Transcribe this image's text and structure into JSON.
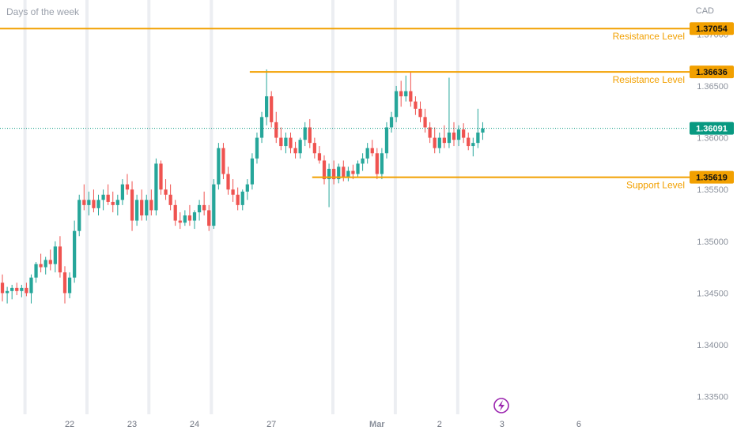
{
  "chart_data": {
    "type": "candlestick",
    "title": "Days of the week",
    "currency": "CAD",
    "ylim": [
      1.3333,
      1.3733
    ],
    "y_ticks": [
      "1.33500",
      "1.34000",
      "1.34500",
      "1.35000",
      "1.35500",
      "1.36000",
      "1.36500",
      "1.37000"
    ],
    "x_ticks": [
      {
        "label": "22",
        "pos": 14
      },
      {
        "label": "23",
        "pos": 27
      },
      {
        "label": "24",
        "pos": 40
      },
      {
        "label": "27",
        "pos": 56
      },
      {
        "label": "Mar",
        "pos": 78,
        "bold": true
      },
      {
        "label": "2",
        "pos": 91
      },
      {
        "label": "3",
        "pos": 104
      },
      {
        "label": "6",
        "pos": 120
      }
    ],
    "x_range": [
      -0.5,
      142.4
    ],
    "session_breaks": [
      4.7,
      17.6,
      30.5,
      43.5,
      68.8,
      81.8,
      94.8
    ],
    "current_price": {
      "value": 1.36091,
      "label": "1.36091"
    },
    "levels": [
      {
        "name": "Resistance Level",
        "value": 1.37054,
        "label": "1.37054",
        "x_start": -0.5
      },
      {
        "name": "Resistance Level",
        "value": 1.36636,
        "label": "1.36636",
        "x_start": 51.5
      },
      {
        "name": "Support Level",
        "value": 1.35619,
        "label": "1.35619",
        "x_start": 64.5
      }
    ],
    "colors": {
      "up": "#26a69a",
      "down": "#ef5350",
      "level": "#f2a000",
      "current": "#089981",
      "grid": "#eceef2",
      "axis_text": "#8b919c"
    },
    "ohlc": [
      [
        1.346,
        1.3468,
        1.3442,
        1.345
      ],
      [
        1.345,
        1.3456,
        1.344,
        1.3452
      ],
      [
        1.3452,
        1.3458,
        1.3444,
        1.3455
      ],
      [
        1.3455,
        1.346,
        1.3448,
        1.3452
      ],
      [
        1.3452,
        1.3458,
        1.3446,
        1.3455
      ],
      [
        1.3455,
        1.346,
        1.3447,
        1.345
      ],
      [
        1.345,
        1.3468,
        1.344,
        1.3465
      ],
      [
        1.3465,
        1.348,
        1.346,
        1.3478
      ],
      [
        1.3478,
        1.3488,
        1.347,
        1.3475
      ],
      [
        1.3475,
        1.3485,
        1.3468,
        1.3482
      ],
      [
        1.3482,
        1.3492,
        1.3472,
        1.3478
      ],
      [
        1.3478,
        1.35,
        1.347,
        1.3495
      ],
      [
        1.3495,
        1.3505,
        1.3465,
        1.347
      ],
      [
        1.347,
        1.3476,
        1.344,
        1.345
      ],
      [
        1.345,
        1.347,
        1.3445,
        1.3465
      ],
      [
        1.3465,
        1.352,
        1.346,
        1.351
      ],
      [
        1.351,
        1.3545,
        1.3505,
        1.354
      ],
      [
        1.354,
        1.3555,
        1.353,
        1.3535
      ],
      [
        1.3535,
        1.3548,
        1.3525,
        1.354
      ],
      [
        1.354,
        1.355,
        1.3528,
        1.3532
      ],
      [
        1.3532,
        1.3545,
        1.3525,
        1.354
      ],
      [
        1.354,
        1.355,
        1.353,
        1.3545
      ],
      [
        1.3545,
        1.3555,
        1.3535,
        1.3538
      ],
      [
        1.3538,
        1.3548,
        1.3528,
        1.3535
      ],
      [
        1.3535,
        1.3545,
        1.3525,
        1.354
      ],
      [
        1.354,
        1.356,
        1.3535,
        1.3555
      ],
      [
        1.3555,
        1.3565,
        1.3545,
        1.355
      ],
      [
        1.355,
        1.3558,
        1.351,
        1.352
      ],
      [
        1.352,
        1.3545,
        1.3515,
        1.354
      ],
      [
        1.354,
        1.355,
        1.352,
        1.3525
      ],
      [
        1.3525,
        1.3545,
        1.352,
        1.354
      ],
      [
        1.354,
        1.355,
        1.3525,
        1.353
      ],
      [
        1.353,
        1.358,
        1.3525,
        1.3575
      ],
      [
        1.3575,
        1.3578,
        1.3545,
        1.355
      ],
      [
        1.355,
        1.356,
        1.354,
        1.3545
      ],
      [
        1.3545,
        1.3555,
        1.353,
        1.3535
      ],
      [
        1.3535,
        1.354,
        1.3515,
        1.352
      ],
      [
        1.352,
        1.3528,
        1.3512,
        1.3518
      ],
      [
        1.3518,
        1.353,
        1.3515,
        1.3525
      ],
      [
        1.3525,
        1.3535,
        1.3515,
        1.352
      ],
      [
        1.352,
        1.353,
        1.3512,
        1.3528
      ],
      [
        1.3528,
        1.354,
        1.352,
        1.3535
      ],
      [
        1.3535,
        1.3548,
        1.3525,
        1.353
      ],
      [
        1.353,
        1.3535,
        1.351,
        1.3515
      ],
      [
        1.3515,
        1.356,
        1.3512,
        1.3555
      ],
      [
        1.3555,
        1.3595,
        1.355,
        1.359
      ],
      [
        1.359,
        1.3595,
        1.356,
        1.3565
      ],
      [
        1.3565,
        1.3572,
        1.3545,
        1.355
      ],
      [
        1.355,
        1.356,
        1.3538,
        1.3545
      ],
      [
        1.3545,
        1.3552,
        1.353,
        1.3535
      ],
      [
        1.3535,
        1.355,
        1.353,
        1.3548
      ],
      [
        1.3548,
        1.356,
        1.354,
        1.3555
      ],
      [
        1.3555,
        1.3585,
        1.355,
        1.358
      ],
      [
        1.358,
        1.3605,
        1.3575,
        1.36
      ],
      [
        1.36,
        1.3625,
        1.3595,
        1.362
      ],
      [
        1.362,
        1.3666,
        1.3612,
        1.364
      ],
      [
        1.364,
        1.3645,
        1.361,
        1.3615
      ],
      [
        1.3615,
        1.3625,
        1.3595,
        1.36
      ],
      [
        1.36,
        1.361,
        1.3588,
        1.3592
      ],
      [
        1.3592,
        1.3605,
        1.3585,
        1.36
      ],
      [
        1.36,
        1.3605,
        1.3585,
        1.359
      ],
      [
        1.359,
        1.3596,
        1.358,
        1.3585
      ],
      [
        1.3585,
        1.36,
        1.358,
        1.3598
      ],
      [
        1.3598,
        1.3615,
        1.3592,
        1.361
      ],
      [
        1.361,
        1.3618,
        1.359,
        1.3595
      ],
      [
        1.3595,
        1.36,
        1.358,
        1.3585
      ],
      [
        1.3585,
        1.3592,
        1.3575,
        1.3578
      ],
      [
        1.3578,
        1.3583,
        1.3555,
        1.356
      ],
      [
        1.356,
        1.3575,
        1.3533,
        1.357
      ],
      [
        1.357,
        1.3578,
        1.3555,
        1.356
      ],
      [
        1.356,
        1.3575,
        1.3556,
        1.3572
      ],
      [
        1.3572,
        1.3578,
        1.3558,
        1.3562
      ],
      [
        1.3562,
        1.3572,
        1.3558,
        1.3568
      ],
      [
        1.3568,
        1.3574,
        1.356,
        1.3565
      ],
      [
        1.3565,
        1.3578,
        1.3562,
        1.3575
      ],
      [
        1.3575,
        1.3585,
        1.3568,
        1.358
      ],
      [
        1.358,
        1.3595,
        1.3575,
        1.359
      ],
      [
        1.359,
        1.3598,
        1.3582,
        1.3585
      ],
      [
        1.3585,
        1.359,
        1.356,
        1.3565
      ],
      [
        1.3565,
        1.359,
        1.356,
        1.3585
      ],
      [
        1.3585,
        1.3615,
        1.358,
        1.361
      ],
      [
        1.361,
        1.3625,
        1.3605,
        1.362
      ],
      [
        1.362,
        1.365,
        1.3615,
        1.3645
      ],
      [
        1.3645,
        1.3655,
        1.363,
        1.364
      ],
      [
        1.364,
        1.366,
        1.3635,
        1.3645
      ],
      [
        1.3645,
        1.3664,
        1.363,
        1.3635
      ],
      [
        1.3635,
        1.364,
        1.3622,
        1.3628
      ],
      [
        1.3628,
        1.3635,
        1.3615,
        1.362
      ],
      [
        1.362,
        1.3628,
        1.3605,
        1.361
      ],
      [
        1.361,
        1.3615,
        1.3595,
        1.36
      ],
      [
        1.36,
        1.361,
        1.3585,
        1.359
      ],
      [
        1.359,
        1.3605,
        1.3585,
        1.36
      ],
      [
        1.36,
        1.3612,
        1.359,
        1.3595
      ],
      [
        1.3595,
        1.3658,
        1.359,
        1.3605
      ],
      [
        1.3605,
        1.3615,
        1.3592,
        1.3598
      ],
      [
        1.3598,
        1.3612,
        1.3592,
        1.3608
      ],
      [
        1.3608,
        1.3614,
        1.3595,
        1.36
      ],
      [
        1.36,
        1.3605,
        1.3588,
        1.3592
      ],
      [
        1.3592,
        1.36,
        1.3582,
        1.3595
      ],
      [
        1.3595,
        1.3628,
        1.359,
        1.3605
      ],
      [
        1.3605,
        1.3615,
        1.3598,
        1.3609
      ]
    ]
  }
}
